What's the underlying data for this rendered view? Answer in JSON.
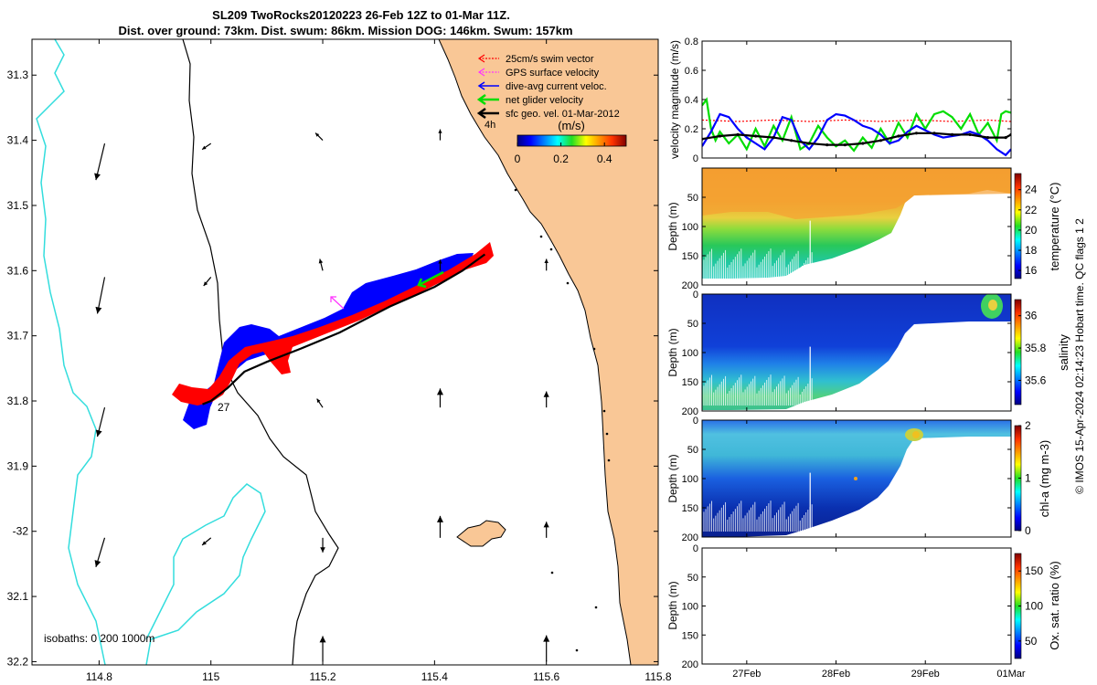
{
  "title": {
    "line1": "SL209 TwoRocks20120223 26-Feb 12Z to 01-Mar 11Z.",
    "line2": "Dist. over ground: 73km. Dist. swum: 86km. Mission DOG: 146km. Swum: 157km"
  },
  "colors": {
    "land": "#f9c796",
    "isobath_200": "#000000",
    "isobath_1000": "#33dddd",
    "swim_vector": "#ff0000",
    "gps_surface": "#ff33ff",
    "dive_avg": "#0000ff",
    "net_glider": "#00dd00",
    "sfc_geo": "#000000"
  },
  "map": {
    "xticks": [
      114.8,
      115,
      115.2,
      115.4,
      115.6,
      115.8
    ],
    "xtick_labels": [
      "114.8",
      "115",
      "115.2",
      "115.4",
      "115.6",
      "115.8"
    ],
    "yticks": [
      -31.3,
      -31.4,
      -31.5,
      -31.6,
      -31.7,
      -31.8,
      -31.9,
      -32,
      -32.1,
      -32.2
    ],
    "ytick_labels": [
      "31.3",
      "31.4",
      "31.5",
      "31.6",
      "31.7",
      "31.8",
      "31.9",
      "-32",
      "32.1",
      "32.2"
    ],
    "xlim": [
      114.68,
      115.8
    ],
    "ylim": [
      -32.205,
      -31.245
    ],
    "legend": [
      {
        "label": "25cm/s swim vector",
        "color": "#ff0000"
      },
      {
        "label": "GPS surface velocity",
        "color": "#ff33ff"
      },
      {
        "label": "dive-avg current veloc.",
        "color": "#0000ff"
      },
      {
        "label": "net glider velocity",
        "color": "#00dd00"
      },
      {
        "label": "sfc geo. vel. 01-Mar-2012",
        "color": "#000000"
      }
    ],
    "scale_label": "4h",
    "colorbar": {
      "unit": "(m/s)",
      "ticks": [
        0,
        0.2,
        0.4
      ],
      "tick_labels": [
        "0",
        "0.2",
        "0.4"
      ],
      "range": [
        0,
        0.5
      ]
    },
    "day_label": "27",
    "isobath_label": "isobaths: 0   200   1000m",
    "glider_track": [
      [
        114.985,
        -31.805
      ],
      [
        115.0,
        -31.8
      ],
      [
        115.03,
        -31.78
      ],
      [
        115.06,
        -31.755
      ],
      [
        115.1,
        -31.74
      ],
      [
        115.16,
        -31.72
      ],
      [
        115.23,
        -31.695
      ],
      [
        115.32,
        -31.655
      ],
      [
        115.4,
        -31.625
      ],
      [
        115.45,
        -31.6
      ],
      [
        115.49,
        -31.575
      ]
    ],
    "geo_velocity_arrows": [
      {
        "lon": 114.81,
        "lat": -31.405,
        "u": -0.12,
        "v": -0.5
      },
      {
        "lon": 114.81,
        "lat": -31.61,
        "u": -0.1,
        "v": -0.5
      },
      {
        "lon": 114.81,
        "lat": -31.81,
        "u": -0.1,
        "v": -0.4
      },
      {
        "lon": 114.81,
        "lat": -32.01,
        "u": -0.12,
        "v": -0.4
      },
      {
        "lon": 115.0,
        "lat": -31.405,
        "u": -0.12,
        "v": -0.08
      },
      {
        "lon": 115.0,
        "lat": -31.61,
        "u": -0.1,
        "v": -0.12
      },
      {
        "lon": 115.0,
        "lat": -32.01,
        "u": -0.12,
        "v": -0.1
      },
      {
        "lon": 115.2,
        "lat": -31.4,
        "u": -0.1,
        "v": 0.1
      },
      {
        "lon": 115.2,
        "lat": -31.6,
        "u": -0.04,
        "v": 0.16
      },
      {
        "lon": 115.2,
        "lat": -31.81,
        "u": -0.08,
        "v": 0.12
      },
      {
        "lon": 115.2,
        "lat": -32.01,
        "u": 0.0,
        "v": -0.2
      },
      {
        "lon": 115.2,
        "lat": -32.2,
        "u": 0.0,
        "v": 0.35
      },
      {
        "lon": 115.41,
        "lat": -31.4,
        "u": 0.0,
        "v": 0.15
      },
      {
        "lon": 115.41,
        "lat": -31.6,
        "u": 0.0,
        "v": 0.15
      },
      {
        "lon": 115.41,
        "lat": -31.81,
        "u": 0.0,
        "v": 0.26
      },
      {
        "lon": 115.41,
        "lat": -32.01,
        "u": 0.0,
        "v": 0.3
      },
      {
        "lon": 115.6,
        "lat": -31.6,
        "u": 0.0,
        "v": 0.16
      },
      {
        "lon": 115.6,
        "lat": -31.81,
        "u": 0.0,
        "v": 0.22
      },
      {
        "lon": 115.6,
        "lat": -32.01,
        "u": 0.0,
        "v": 0.22
      },
      {
        "lon": 115.6,
        "lat": -32.2,
        "u": 0.0,
        "v": 0.36
      }
    ]
  },
  "chart_data": [
    {
      "type": "line",
      "title": "",
      "ylabel": "velocity magnitude (m/s)",
      "ylim": [
        0,
        0.8
      ],
      "yticks": [
        0,
        0.2,
        0.4,
        0.6,
        0.8
      ],
      "ytick_labels": [
        "0",
        "0.2",
        "0.4",
        "0.6",
        "0.8"
      ],
      "xlim": [
        26.5,
        29.96
      ],
      "series": [
        {
          "name": "swim vector",
          "color": "#ff0000",
          "x": [
            26.5,
            26.9,
            27.3,
            27.7,
            28.1,
            28.5,
            28.9,
            29.3,
            29.7,
            29.96
          ],
          "values": [
            0.26,
            0.25,
            0.26,
            0.25,
            0.26,
            0.25,
            0.26,
            0.25,
            0.26,
            0.25
          ]
        },
        {
          "name": "net glider velocity",
          "color": "#00dd00",
          "x": [
            26.5,
            26.55,
            26.6,
            26.65,
            26.7,
            26.8,
            26.9,
            27.0,
            27.1,
            27.2,
            27.3,
            27.4,
            27.5,
            27.6,
            27.7,
            27.8,
            27.9,
            28.0,
            28.1,
            28.2,
            28.3,
            28.4,
            28.5,
            28.6,
            28.7,
            28.8,
            28.9,
            29.0,
            29.1,
            29.2,
            29.3,
            29.4,
            29.5,
            29.6,
            29.7,
            29.8,
            29.85,
            29.9,
            29.96
          ],
          "values": [
            0.36,
            0.4,
            0.2,
            0.12,
            0.18,
            0.1,
            0.16,
            0.06,
            0.2,
            0.08,
            0.22,
            0.12,
            0.28,
            0.06,
            0.1,
            0.22,
            0.14,
            0.08,
            0.12,
            0.05,
            0.14,
            0.07,
            0.2,
            0.1,
            0.24,
            0.14,
            0.3,
            0.2,
            0.3,
            0.32,
            0.28,
            0.2,
            0.3,
            0.16,
            0.24,
            0.12,
            0.3,
            0.32,
            0.31
          ]
        },
        {
          "name": "dive-avg current veloc.",
          "color": "#0000ff",
          "x": [
            26.5,
            26.6,
            26.7,
            26.8,
            26.9,
            27.0,
            27.1,
            27.2,
            27.3,
            27.4,
            27.5,
            27.6,
            27.7,
            27.8,
            27.9,
            28.0,
            28.1,
            28.2,
            28.3,
            28.4,
            28.5,
            28.6,
            28.7,
            28.8,
            28.9,
            29.0,
            29.1,
            29.2,
            29.3,
            29.4,
            29.5,
            29.6,
            29.7,
            29.8,
            29.9,
            29.96
          ],
          "values": [
            0.08,
            0.18,
            0.3,
            0.28,
            0.2,
            0.14,
            0.1,
            0.06,
            0.14,
            0.28,
            0.26,
            0.12,
            0.06,
            0.14,
            0.26,
            0.3,
            0.29,
            0.26,
            0.22,
            0.2,
            0.16,
            0.1,
            0.12,
            0.18,
            0.22,
            0.19,
            0.16,
            0.14,
            0.15,
            0.16,
            0.18,
            0.16,
            0.12,
            0.06,
            0.02,
            0.06
          ]
        },
        {
          "name": "sfc geo. vel.",
          "color": "#000000",
          "x": [
            26.5,
            26.7,
            26.9,
            27.1,
            27.3,
            27.5,
            27.7,
            27.9,
            28.1,
            28.3,
            28.5,
            28.7,
            28.9,
            29.1,
            29.3,
            29.5,
            29.7,
            29.9,
            29.96
          ],
          "values": [
            0.13,
            0.15,
            0.16,
            0.15,
            0.14,
            0.12,
            0.1,
            0.09,
            0.09,
            0.1,
            0.12,
            0.15,
            0.17,
            0.17,
            0.16,
            0.16,
            0.14,
            0.14,
            0.16
          ]
        }
      ]
    },
    {
      "type": "heatmap",
      "ylabel": "Depth (m)",
      "clabel": "temperature (°C)",
      "ylim": [
        0,
        200
      ],
      "yticks": [
        50,
        100,
        150,
        200
      ],
      "ytick_labels": [
        "50",
        "100",
        "150",
        "200"
      ],
      "crange": [
        15.2,
        25.6
      ],
      "cticks": [
        16,
        18,
        20,
        22,
        24
      ],
      "ctick_labels": [
        "16",
        "18",
        "20",
        "22",
        "24"
      ],
      "bottom_depth_profile": {
        "x": [
          26.5,
          27.0,
          27.5,
          28.0,
          28.5,
          28.8,
          28.95,
          29.05,
          29.2,
          29.96
        ],
        "depth": [
          190,
          188,
          190,
          175,
          155,
          120,
          60,
          30,
          25,
          25
        ]
      }
    },
    {
      "type": "heatmap",
      "ylabel": "Depth (m)",
      "clabel": "salinity",
      "ylim": [
        0,
        200
      ],
      "yticks": [
        0,
        50,
        100,
        150,
        200
      ],
      "ytick_labels": [
        "0",
        "50",
        "100",
        "150",
        "200"
      ],
      "crange": [
        35.45,
        36.1
      ],
      "cticks": [
        35.6,
        35.8,
        36
      ],
      "ctick_labels": [
        "35.6",
        "35.8",
        "36"
      ]
    },
    {
      "type": "heatmap",
      "ylabel": "Depth (m)",
      "clabel": "chl-a (mg m-3)",
      "ylim": [
        0,
        200
      ],
      "yticks": [
        0,
        50,
        100,
        150,
        200
      ],
      "ytick_labels": [
        "0",
        "50",
        "100",
        "150",
        "200"
      ],
      "crange": [
        0,
        2
      ],
      "cticks": [
        0,
        1,
        2
      ],
      "ctick_labels": [
        "0",
        "1",
        "2"
      ]
    },
    {
      "type": "heatmap",
      "ylabel": "Depth (m)",
      "clabel": "Ox. sat. ratio (%)",
      "ylim": [
        0,
        200
      ],
      "yticks": [
        0,
        50,
        100,
        150,
        200
      ],
      "ytick_labels": [
        "0",
        "50",
        "100",
        "150",
        "200"
      ],
      "crange": [
        25,
        175
      ],
      "cticks": [
        50,
        100,
        150
      ],
      "ctick_labels": [
        "50",
        "100",
        "150"
      ]
    }
  ],
  "time_axis": {
    "ticks": [
      27,
      28,
      29,
      29.96
    ],
    "tick_labels": [
      "27Feb",
      "28Feb",
      "29Feb",
      "01Mar"
    ]
  },
  "footer": "© IMOS 15-Apr-2024 02:14:23 Hobart time. QC flags 1  2"
}
